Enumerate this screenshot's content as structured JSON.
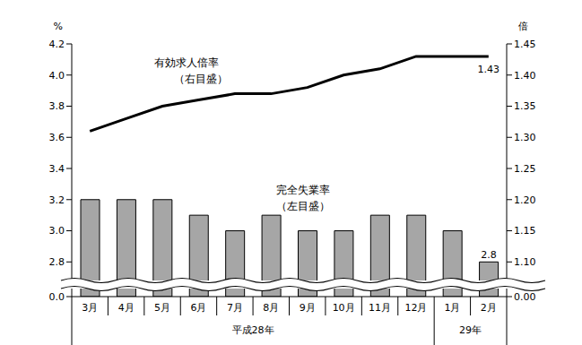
{
  "chart_data": {
    "type": "bar",
    "categories": [
      "3月",
      "4月",
      "5月",
      "6月",
      "7月",
      "8月",
      "9月",
      "10月",
      "11月",
      "12月",
      "1月",
      "2月"
    ],
    "category_groups": [
      "平成28年",
      "平成28年",
      "平成28年",
      "平成28年",
      "平成28年",
      "平成28年",
      "平成28年",
      "平成28年",
      "平成28年",
      "平成28年",
      "29年",
      "29年"
    ],
    "ylabel": "%",
    "y2label": "倍",
    "ylim": [
      0,
      4.2
    ],
    "yticks": [
      {
        "value": 0,
        "label": "0.0"
      },
      2.8,
      {
        "value": 3,
        "label": "3.0"
      },
      3.2,
      3.4,
      3.6,
      3.8,
      {
        "value": 4,
        "label": "4.0"
      },
      4.2
    ],
    "y2lim": [
      0,
      1.45
    ],
    "y2ticks": [
      {
        "value": 0,
        "label": "0.00"
      },
      {
        "value": 1.1,
        "label": "1.10"
      },
      1.15,
      {
        "value": 1.2,
        "label": "1.20"
      },
      1.25,
      {
        "value": 1.3,
        "label": "1.30"
      },
      1.35,
      {
        "value": 1.4,
        "label": "1.40"
      },
      1.45
    ],
    "series": [
      {
        "name": "完全失業率（左目盛）",
        "type": "bar",
        "color": "#a6a6a6",
        "values": [
          3.2,
          3.2,
          3.2,
          3.1,
          3.0,
          3.1,
          3.0,
          3.0,
          3.1,
          3.1,
          3.0,
          2.8
        ],
        "value_labels": [
          null,
          null,
          null,
          null,
          null,
          null,
          null,
          null,
          null,
          null,
          null,
          "2.8"
        ]
      },
      {
        "name": "有効求人倍率（右目盛）",
        "type": "line",
        "axis": "y2",
        "color": "#000000",
        "marker": "none",
        "values": [
          1.31,
          1.33,
          1.35,
          1.36,
          1.37,
          1.37,
          1.38,
          1.4,
          1.41,
          1.43,
          1.43,
          1.43
        ],
        "value_labels": [
          null,
          null,
          null,
          null,
          null,
          null,
          null,
          null,
          null,
          null,
          null,
          "1.43"
        ]
      }
    ]
  }
}
